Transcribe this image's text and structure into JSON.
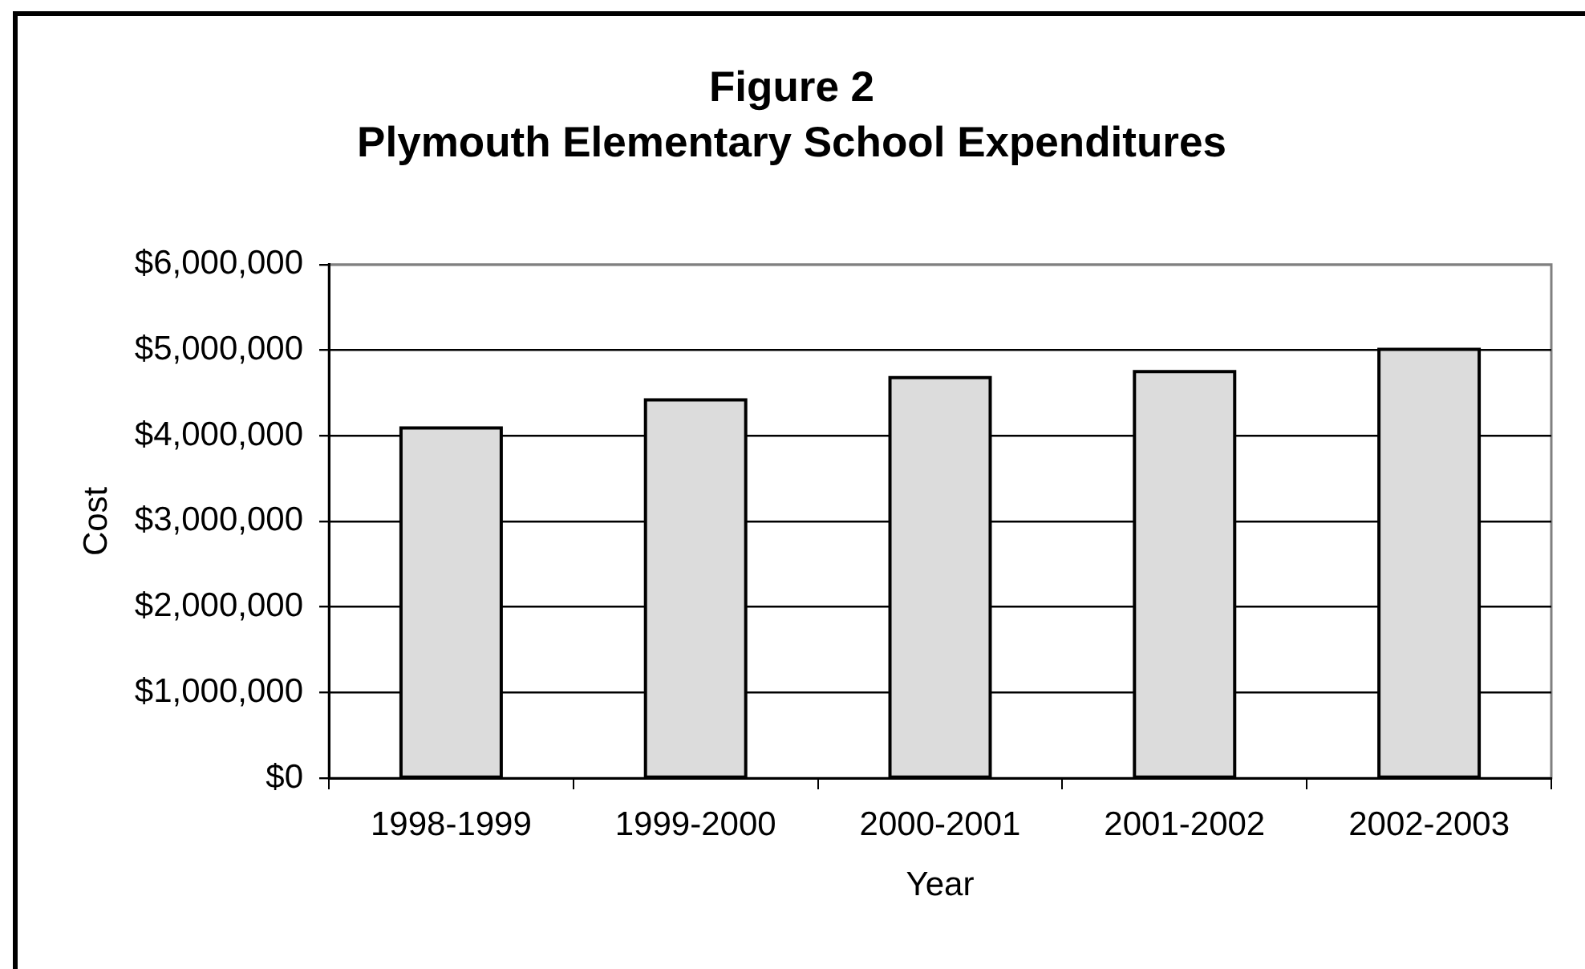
{
  "chart_data": {
    "type": "bar",
    "title": "Figure 2",
    "subtitle": "Plymouth Elementary School Expenditures",
    "xlabel": "Year",
    "ylabel": "Cost",
    "categories": [
      "1998-1999",
      "1999-2000",
      "2000-2001",
      "2001-2002",
      "2002-2003"
    ],
    "values": [
      4090000,
      4420000,
      4680000,
      4750000,
      5010000
    ],
    "color": "#dcdcdc",
    "ylim": [
      0,
      6000000
    ],
    "yticks": [
      {
        "value": 0,
        "label": "$0"
      },
      {
        "value": 1000000,
        "label": "$1,000,000"
      },
      {
        "value": 2000000,
        "label": "$2,000,000"
      },
      {
        "value": 3000000,
        "label": "$3,000,000"
      },
      {
        "value": 4000000,
        "label": "$4,000,000"
      },
      {
        "value": 5000000,
        "label": "$5,000,000"
      },
      {
        "value": 6000000,
        "label": "$6,000,000"
      }
    ],
    "grid": "y"
  }
}
